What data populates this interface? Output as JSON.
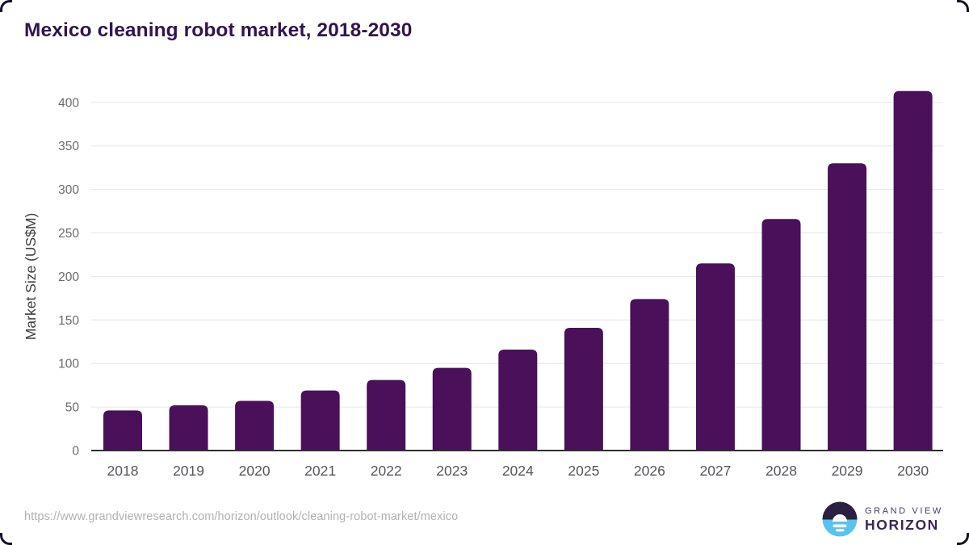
{
  "header": {
    "title": "Mexico cleaning robot market, 2018-2030"
  },
  "chart_data": {
    "type": "bar",
    "title": "Mexico cleaning robot market, 2018-2030",
    "categories": [
      "2018",
      "2019",
      "2020",
      "2021",
      "2022",
      "2023",
      "2024",
      "2025",
      "2026",
      "2027",
      "2028",
      "2029",
      "2030"
    ],
    "values": [
      46,
      52,
      57,
      69,
      81,
      95,
      116,
      141,
      174,
      215,
      266,
      330,
      413
    ],
    "xlabel": "",
    "ylabel": "Market Size (US$M)",
    "ylim": [
      0,
      400
    ],
    "ytick_step": 50,
    "yticks": [
      0,
      50,
      100,
      150,
      200,
      250,
      300,
      350,
      400
    ],
    "grid": true,
    "legend_position": "none",
    "bar_color": "#4a1059"
  },
  "footer": {
    "source_url": "https://www.grandviewresearch.com/horizon/outlook/cleaning-robot-market/mexico",
    "logo": {
      "line1": "GRAND VIEW",
      "line2": "HORIZON",
      "icon": "horizon-sun-icon",
      "icon_colors": {
        "dark": "#2b2040",
        "blue": "#5ac2ef",
        "sun": "#ffffff"
      }
    }
  },
  "colors": {
    "title_text": "#321350",
    "bar_fill": "#4a1059",
    "axis_line": "#2f2f2f",
    "gridline": "#e6e6e6",
    "ytick_label": "#6b6b6b",
    "xtick_label": "#55565a",
    "axis_title": "#3e3e42",
    "url_text": "#b1b1b1",
    "corner_mark": "#170f2a"
  }
}
